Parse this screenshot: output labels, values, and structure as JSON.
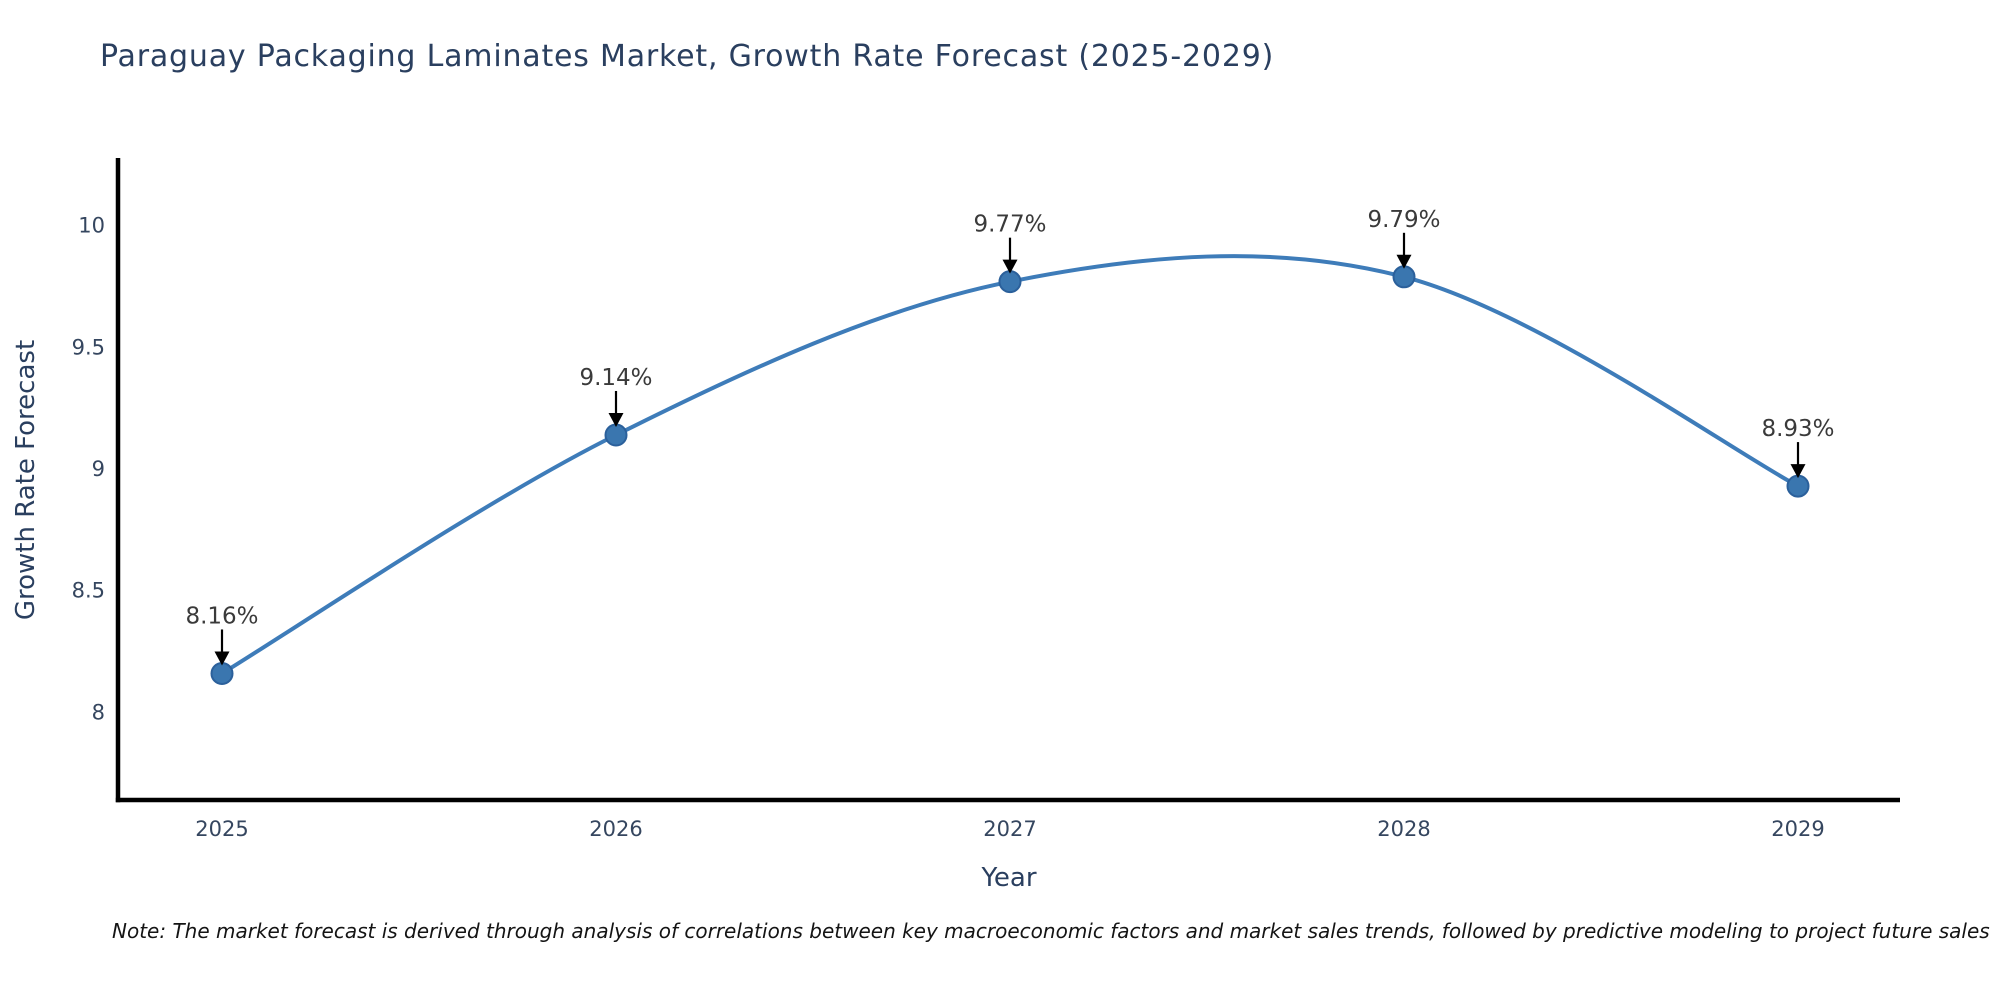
{
  "chart_data": {
    "type": "line",
    "title": "Paraguay Packaging Laminates Market, Growth Rate Forecast (2025-2029)",
    "xlabel": "Year",
    "ylabel": "Growth Rate Forecast",
    "categories": [
      "2025",
      "2026",
      "2027",
      "2028",
      "2029"
    ],
    "series": [
      {
        "name": "Growth Rate Forecast",
        "values": [
          8.16,
          9.14,
          9.77,
          9.79,
          8.93
        ],
        "point_labels": [
          "8.16%",
          "9.14%",
          "9.77%",
          "9.79%",
          "8.93%"
        ]
      }
    ],
    "yticks": [
      8,
      8.5,
      9,
      9.5,
      10
    ],
    "ylim": [
      7.64,
      10.27
    ],
    "grid": false,
    "legend_position": "none",
    "line_shape": "spline",
    "markers": true,
    "annotations_style": "value labels with downward arrows pointing at each marker",
    "note": "Note: The market forecast is derived through analysis of correlations between key macroeconomic factors and market sales trends, followed by predictive modeling to project future sales",
    "colors": {
      "line": "#3e7cb9",
      "marker_fill": "#3a76af",
      "marker_edge": "#2b609b",
      "spine": "#000000",
      "arrow": "#000000",
      "title_text": "#2a3f5f",
      "axis_text": "#35465f",
      "label_text": "#3a3a3a",
      "background": "#ffffff"
    }
  }
}
